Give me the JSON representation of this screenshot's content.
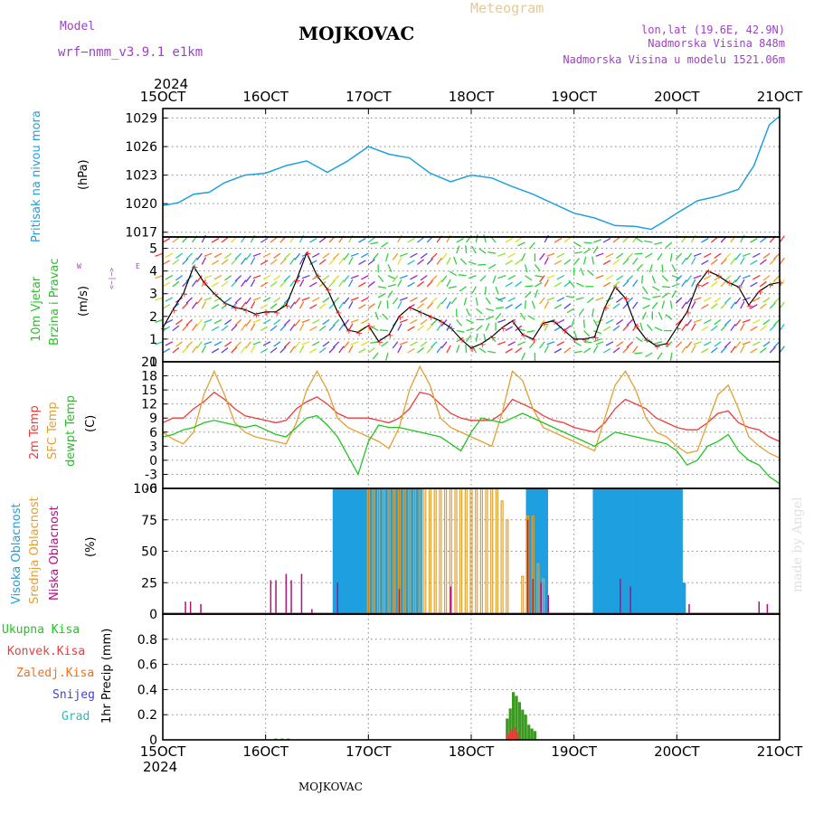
{
  "header": {
    "model_label": "Model",
    "model_name": "wrf−nmm_v3.9.1  e1km",
    "station": "MOJKOVAC",
    "title": "Meteogram",
    "coords": "lon,lat (19.6E, 42.9N)",
    "elevation": "Nadmorska Visina 848m",
    "model_elevation": "Nadmorska Visina u modelu 1521.06m",
    "year_top": "2024",
    "year_bottom": "2024",
    "footer_station": "MOJKOVAC",
    "credit": "made by Angel"
  },
  "colors": {
    "pressure": "#1e9fe0",
    "wind_line": "#000000",
    "gust_marks": "#ff3030",
    "temp2m": "#ee3b3b",
    "sfc_temp": "#e0a030",
    "dewpoint": "#22c422",
    "high_cloud": "#1e9fe0",
    "mid_cloud": "#e0a030",
    "low_cloud": "#b01080",
    "total_precip": "#3a9a20",
    "conv_precip": "#ee3b3b",
    "frozen_precip": "#f07020",
    "snow": "#4040e0",
    "hail": "#20c0c0"
  },
  "time_axis": {
    "ticks": [
      "15OCT",
      "16OCT",
      "17OCT",
      "18OCT",
      "19OCT",
      "20OCT",
      "21OCT"
    ]
  },
  "panels": {
    "pressure": {
      "labels": [
        "Pritisak na nivou mora",
        "(hPa)"
      ],
      "ticks": [
        1017,
        1020,
        1023,
        1026,
        1029
      ]
    },
    "wind": {
      "labels": [
        "10m Vjetar",
        "Brzina i Pravac",
        "(m/s)"
      ],
      "ticks": [
        0,
        1,
        2,
        3,
        4,
        5
      ],
      "compass": {
        "w": "W",
        "e": "E",
        "n": "N",
        "s": "S",
        "arrow": "<−|−>"
      }
    },
    "temperature": {
      "labels": [
        "2m Temp",
        "SFC Temp",
        "dewpt Temp",
        "(C)"
      ],
      "ticks": [
        -6,
        -3,
        0,
        3,
        6,
        9,
        12,
        15,
        18,
        21
      ]
    },
    "cloud": {
      "labels": [
        "Visoka Oblacnost",
        "Srednja Oblacnost",
        "Niska Oblacnost",
        "(%)"
      ],
      "ticks": [
        0,
        25,
        50,
        75,
        100
      ]
    },
    "precip": {
      "labels": [
        "Ukupna Kisa",
        "Konvek.Kisa",
        "Zaledj.Kisa",
        "Snijeg",
        "Grad",
        "1hr Precip (mm)"
      ],
      "ticks": [
        0,
        0.2,
        0.4,
        0.6,
        0.8
      ]
    }
  },
  "chart_data": [
    {
      "type": "line",
      "title": "",
      "ylabel": "(hPa)",
      "x_unit": "days since 15OCT 00UTC",
      "xlim": [
        0,
        6
      ],
      "ylim": [
        1016.5,
        1030
      ],
      "series": [
        {
          "name": "Pritisak na nivou mora",
          "x": [
            0,
            0.15,
            0.3,
            0.45,
            0.6,
            0.8,
            1.0,
            1.2,
            1.4,
            1.6,
            1.8,
            2.0,
            2.2,
            2.4,
            2.6,
            2.8,
            3.0,
            3.2,
            3.4,
            3.6,
            3.8,
            4.0,
            4.2,
            4.4,
            4.6,
            4.75,
            4.9,
            5.0,
            5.2,
            5.4,
            5.6,
            5.75,
            5.9,
            6.0
          ],
          "y": [
            1019.8,
            1020.1,
            1021.0,
            1021.2,
            1022.2,
            1023.0,
            1023.2,
            1024.0,
            1024.5,
            1023.3,
            1024.5,
            1026.0,
            1025.2,
            1024.8,
            1023.2,
            1022.3,
            1023.0,
            1022.7,
            1021.8,
            1021.0,
            1020.0,
            1019.0,
            1018.5,
            1017.7,
            1017.6,
            1017.3,
            1018.3,
            1019.0,
            1020.3,
            1020.8,
            1021.5,
            1024.0,
            1028.3,
            1029.2
          ]
        }
      ]
    },
    {
      "type": "line",
      "title": "",
      "ylabel": "(m/s)",
      "x_unit": "days since 15OCT 00UTC",
      "xlim": [
        0,
        6
      ],
      "ylim": [
        0,
        5.5
      ],
      "series": [
        {
          "name": "wind speed",
          "x": [
            0,
            0.1,
            0.2,
            0.3,
            0.4,
            0.5,
            0.6,
            0.7,
            0.8,
            0.9,
            1.0,
            1.1,
            1.2,
            1.3,
            1.4,
            1.5,
            1.6,
            1.7,
            1.8,
            1.9,
            2.0,
            2.1,
            2.2,
            2.3,
            2.4,
            2.5,
            2.6,
            2.7,
            2.8,
            2.9,
            3.0,
            3.1,
            3.2,
            3.3,
            3.4,
            3.5,
            3.6,
            3.7,
            3.8,
            3.9,
            4.0,
            4.1,
            4.2,
            4.3,
            4.4,
            4.5,
            4.6,
            4.7,
            4.8,
            4.9,
            5.0,
            5.1,
            5.2,
            5.3,
            5.4,
            5.5,
            5.6,
            5.7,
            5.8,
            5.9,
            6.0
          ],
          "y": [
            1.5,
            2.3,
            3.0,
            4.2,
            3.5,
            3.0,
            2.6,
            2.4,
            2.3,
            2.1,
            2.2,
            2.2,
            2.5,
            3.6,
            4.8,
            3.8,
            3.2,
            2.2,
            1.4,
            1.3,
            1.6,
            0.9,
            1.2,
            2.0,
            2.4,
            2.2,
            2.0,
            1.8,
            1.5,
            1.0,
            0.6,
            0.8,
            1.1,
            1.5,
            1.8,
            1.2,
            1.0,
            1.7,
            1.8,
            1.4,
            1.0,
            1.0,
            1.1,
            2.4,
            3.3,
            2.8,
            1.6,
            1.0,
            0.7,
            0.8,
            1.5,
            2.2,
            3.4,
            4.0,
            3.8,
            3.5,
            3.3,
            2.5,
            3.1,
            3.4,
            3.5
          ]
        }
      ]
    },
    {
      "type": "line",
      "title": "",
      "ylabel": "(C)",
      "x_unit": "days since 15OCT 00UTC",
      "xlim": [
        0,
        6
      ],
      "ylim": [
        -6,
        21
      ],
      "series": [
        {
          "name": "2m Temp",
          "x": [
            0,
            0.1,
            0.2,
            0.3,
            0.4,
            0.5,
            0.6,
            0.7,
            0.8,
            0.9,
            1.0,
            1.1,
            1.2,
            1.3,
            1.4,
            1.5,
            1.6,
            1.7,
            1.8,
            1.9,
            2.0,
            2.1,
            2.2,
            2.3,
            2.4,
            2.5,
            2.6,
            2.7,
            2.8,
            2.9,
            3.0,
            3.1,
            3.2,
            3.3,
            3.4,
            3.5,
            3.6,
            3.7,
            3.8,
            3.9,
            4.0,
            4.1,
            4.2,
            4.3,
            4.4,
            4.5,
            4.6,
            4.7,
            4.8,
            4.9,
            5.0,
            5.1,
            5.2,
            5.3,
            5.4,
            5.5,
            5.6,
            5.7,
            5.8,
            5.9,
            6.0
          ],
          "y": [
            8,
            9,
            9,
            11,
            12.5,
            14.5,
            13,
            11,
            9.5,
            9,
            8.5,
            8,
            8.5,
            11,
            12.5,
            13.5,
            12,
            10,
            9,
            9,
            9,
            8.5,
            8,
            9,
            11,
            14.5,
            14,
            12,
            10,
            9,
            8.5,
            8.5,
            8.5,
            10,
            13,
            12,
            11,
            9.5,
            8.5,
            8,
            7,
            6.5,
            6,
            8,
            11,
            13,
            12,
            11,
            9,
            8,
            7,
            6.5,
            6.5,
            8,
            10,
            10.5,
            8,
            7,
            6.5,
            5,
            4
          ]
        },
        {
          "name": "SFC Temp",
          "x": [
            0,
            0.1,
            0.2,
            0.3,
            0.4,
            0.5,
            0.6,
            0.7,
            0.8,
            0.9,
            1.0,
            1.1,
            1.2,
            1.3,
            1.4,
            1.5,
            1.6,
            1.7,
            1.8,
            1.9,
            2.0,
            2.1,
            2.2,
            2.3,
            2.4,
            2.5,
            2.6,
            2.7,
            2.8,
            2.9,
            3.0,
            3.1,
            3.2,
            3.3,
            3.4,
            3.5,
            3.6,
            3.7,
            3.8,
            3.9,
            4.0,
            4.1,
            4.2,
            4.3,
            4.4,
            4.5,
            4.6,
            4.7,
            4.8,
            4.9,
            5.0,
            5.1,
            5.2,
            5.3,
            5.4,
            5.5,
            5.6,
            5.7,
            5.8,
            5.9,
            6.0
          ],
          "y": [
            6,
            4.5,
            3.5,
            6,
            14,
            19,
            14,
            8,
            6,
            5,
            4.5,
            4,
            3.5,
            8,
            15,
            19,
            15,
            9,
            7,
            6,
            5,
            4,
            2.5,
            7,
            15,
            20,
            16,
            9,
            7,
            6,
            5,
            4,
            3,
            10,
            19,
            17,
            11,
            7,
            6,
            5,
            4,
            3,
            2,
            9,
            16,
            19,
            15,
            9,
            6,
            5,
            3,
            1.5,
            2,
            8,
            14,
            16,
            11,
            5,
            3,
            1.5,
            0.5
          ]
        },
        {
          "name": "dewpt Temp",
          "x": [
            0,
            0.1,
            0.2,
            0.3,
            0.4,
            0.5,
            0.6,
            0.7,
            0.8,
            0.9,
            1.0,
            1.1,
            1.2,
            1.3,
            1.4,
            1.5,
            1.6,
            1.7,
            1.8,
            1.9,
            2.0,
            2.1,
            2.2,
            2.3,
            2.4,
            2.5,
            2.6,
            2.7,
            2.8,
            2.9,
            3.0,
            3.1,
            3.2,
            3.3,
            3.4,
            3.5,
            3.6,
            3.7,
            3.8,
            3.9,
            4.0,
            4.1,
            4.2,
            4.3,
            4.4,
            4.5,
            4.6,
            4.7,
            4.8,
            4.9,
            5.0,
            5.1,
            5.2,
            5.3,
            5.4,
            5.5,
            5.6,
            5.7,
            5.8,
            5.9,
            6.0
          ],
          "y": [
            5,
            5.5,
            6.5,
            7,
            8,
            8.5,
            8,
            7.5,
            7,
            7.5,
            6.5,
            5.5,
            5,
            7,
            9,
            9.5,
            7.5,
            5,
            1,
            -3,
            4,
            7.5,
            7,
            7,
            6.5,
            6,
            5.5,
            5,
            3.5,
            2,
            6,
            9,
            8.5,
            8,
            9,
            10,
            9,
            8,
            7,
            6,
            5,
            4,
            3,
            4.5,
            6,
            5.5,
            5,
            4.5,
            4,
            3.5,
            2,
            -1,
            0,
            3,
            4,
            5.5,
            2,
            0,
            -1,
            -3.5,
            -5
          ]
        }
      ]
    },
    {
      "type": "bar",
      "title": "",
      "ylabel": "(%)",
      "x_unit": "days since 15OCT 00UTC",
      "xlim": [
        0,
        6
      ],
      "ylim": [
        0,
        100
      ],
      "series": [
        {
          "name": "Visoka Oblacnost",
          "x": [
            1.67,
            1.7,
            1.73,
            1.76,
            1.79,
            1.82,
            1.85,
            1.88,
            1.91,
            1.94,
            1.97,
            2.0,
            2.03,
            2.06,
            2.09,
            2.12,
            2.15,
            2.18,
            2.21,
            2.24,
            2.27,
            2.3,
            2.33,
            2.36,
            2.39,
            2.42,
            2.45,
            2.48,
            2.51,
            3.55,
            3.58,
            3.61,
            3.64,
            3.67,
            3.7,
            3.73,
            4.2,
            4.23,
            4.26,
            4.29,
            4.32,
            4.35,
            4.38,
            4.41,
            4.44,
            4.47,
            4.5,
            4.53,
            4.56,
            4.59,
            4.62,
            4.65,
            4.68,
            4.71,
            4.74,
            4.77,
            4.8,
            4.83,
            4.86,
            4.89,
            4.92,
            4.95,
            4.98,
            5.01,
            5.04,
            5.07
          ],
          "values": [
            100,
            100,
            100,
            100,
            100,
            100,
            100,
            100,
            100,
            100,
            100,
            100,
            100,
            100,
            100,
            100,
            100,
            100,
            100,
            100,
            100,
            100,
            100,
            100,
            100,
            100,
            100,
            100,
            100,
            100,
            100,
            100,
            100,
            100,
            100,
            100,
            100,
            100,
            100,
            100,
            100,
            100,
            100,
            100,
            100,
            100,
            100,
            100,
            100,
            100,
            100,
            100,
            100,
            100,
            100,
            100,
            100,
            100,
            100,
            100,
            100,
            100,
            100,
            100,
            100,
            25
          ]
        },
        {
          "name": "Srednja Oblacnost",
          "x": [
            2.0,
            2.05,
            2.1,
            2.15,
            2.2,
            2.25,
            2.3,
            2.35,
            2.4,
            2.45,
            2.5,
            2.55,
            2.6,
            2.65,
            2.7,
            2.75,
            2.8,
            2.85,
            2.9,
            2.95,
            3.0,
            3.05,
            3.1,
            3.15,
            3.2,
            3.25,
            3.3,
            3.35,
            3.5,
            3.55,
            3.6,
            3.65,
            3.7
          ],
          "values": [
            100,
            100,
            100,
            100,
            100,
            100,
            100,
            100,
            100,
            100,
            100,
            100,
            100,
            100,
            100,
            100,
            100,
            100,
            100,
            100,
            100,
            100,
            100,
            100,
            100,
            100,
            90,
            75,
            30,
            78,
            78,
            40,
            28
          ]
        },
        {
          "name": "Niska Oblacnost",
          "x": [
            0.22,
            0.27,
            0.37,
            1.05,
            1.1,
            1.2,
            1.25,
            1.35,
            1.45,
            1.7,
            2.3,
            2.8,
            3.55,
            3.6,
            3.68,
            3.75,
            4.45,
            4.55,
            5.12,
            5.8,
            5.88
          ],
          "values": [
            10,
            10,
            8,
            27,
            27,
            32,
            27,
            32,
            4,
            25,
            20,
            22,
            75,
            28,
            25,
            15,
            28,
            22,
            8,
            10,
            8
          ]
        }
      ]
    },
    {
      "type": "bar",
      "title": "",
      "ylabel": "1hr Precip (mm)",
      "x_unit": "days since 15OCT 00UTC",
      "xlim": [
        0,
        6
      ],
      "ylim": [
        0,
        1.0
      ],
      "series": [
        {
          "name": "Ukupna Kisa",
          "x": [
            1.1,
            1.16,
            1.22,
            3.35,
            3.38,
            3.41,
            3.44,
            3.47,
            3.5,
            3.53,
            3.56,
            3.59,
            3.62
          ],
          "values": [
            0.01,
            0.01,
            0.01,
            0.17,
            0.25,
            0.38,
            0.35,
            0.3,
            0.24,
            0.2,
            0.12,
            0.09,
            0.07
          ]
        },
        {
          "name": "Konvek.Kisa",
          "x": [
            3.36,
            3.39,
            3.42,
            3.45
          ],
          "values": [
            0.05,
            0.08,
            0.1,
            0.06
          ]
        }
      ]
    }
  ]
}
